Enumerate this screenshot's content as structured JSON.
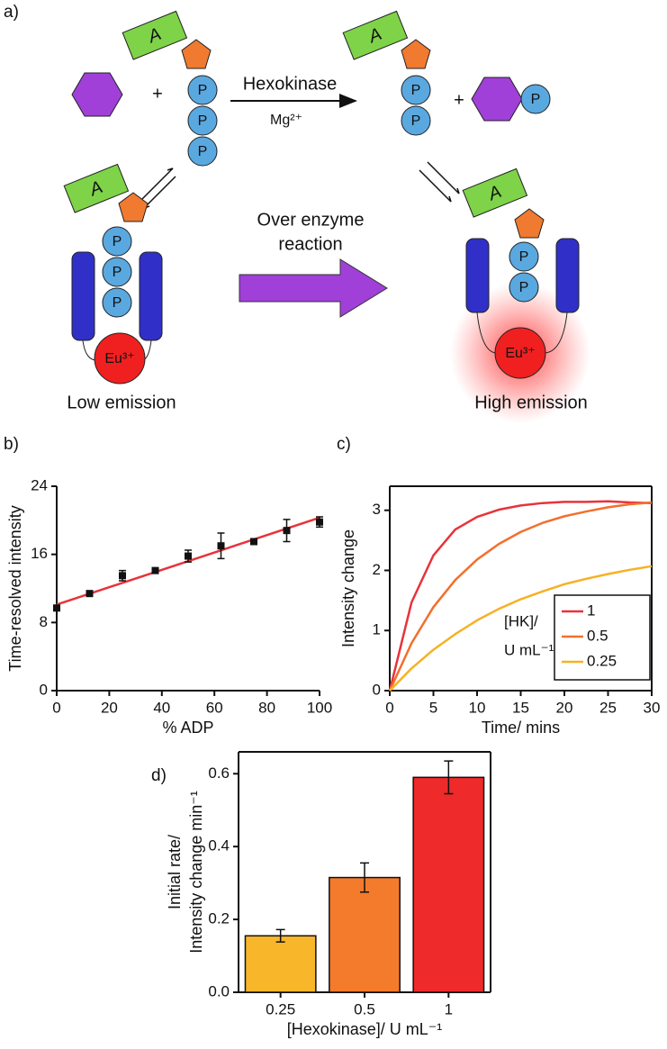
{
  "diagram": {
    "panel": "a)",
    "enzyme": "Hexokinase",
    "cofactor": "Mg²⁺",
    "plus": "+",
    "adenine": "A",
    "phosphate": "P",
    "europium": "Eu³⁺",
    "arrow_label": [
      "Over enzyme",
      "reaction"
    ],
    "left_caption": "Low emission",
    "right_caption": "High emission"
  },
  "chart_data": [
    {
      "type": "scatter",
      "panel": "b)",
      "xlabel": "% ADP",
      "ylabel": "Time-resolved intensity",
      "x": [
        0,
        12.5,
        25,
        37.5,
        50,
        62.5,
        75,
        87.5,
        100
      ],
      "values": [
        9.7,
        11.4,
        13.5,
        14.1,
        15.8,
        17.0,
        17.5,
        18.8,
        19.8
      ],
      "errors": [
        0.3,
        0.3,
        0.6,
        0.3,
        0.7,
        1.5,
        0.3,
        1.3,
        0.6
      ],
      "color": "#111111",
      "fit": {
        "x": [
          0,
          100
        ],
        "values": [
          10.1,
          20.3
        ],
        "color": "#e8333a"
      },
      "xlim": [
        0,
        100
      ],
      "xticks": [
        0,
        20,
        40,
        60,
        80,
        100
      ],
      "ylim": [
        0,
        24
      ],
      "yticks": [
        0,
        8,
        16,
        24
      ]
    },
    {
      "type": "line",
      "panel": "c)",
      "xlabel": "Time/ mins",
      "ylabel": "Intensity change",
      "x": [
        0,
        2.5,
        5,
        7.5,
        10,
        12.5,
        15,
        17.5,
        20,
        22.5,
        25,
        27.5,
        30
      ],
      "series": [
        {
          "name": "1",
          "color": "#e8333a",
          "values": [
            0,
            1.47,
            2.25,
            2.68,
            2.89,
            3.01,
            3.08,
            3.12,
            3.14,
            3.14,
            3.15,
            3.13,
            3.12
          ]
        },
        {
          "name": "0.5",
          "color": "#f36f2c",
          "values": [
            0,
            0.79,
            1.39,
            1.84,
            2.18,
            2.44,
            2.64,
            2.79,
            2.9,
            2.98,
            3.05,
            3.1,
            3.13
          ]
        },
        {
          "name": "0.25",
          "color": "#f6b124",
          "values": [
            0,
            0.37,
            0.68,
            0.94,
            1.17,
            1.36,
            1.52,
            1.65,
            1.77,
            1.86,
            1.94,
            2.01,
            2.07
          ]
        }
      ],
      "legend_title": [
        "[HK]/",
        "U mL⁻¹"
      ],
      "legend": "lower right",
      "xlim": [
        0,
        30
      ],
      "xticks": [
        0,
        5,
        10,
        15,
        20,
        25,
        30
      ],
      "ylim": [
        0,
        3.4
      ],
      "yticks": [
        0,
        1,
        2,
        3
      ]
    },
    {
      "type": "bar",
      "panel": "d)",
      "xlabel": "[Hexokinase]/ U mL⁻¹",
      "ylabel": [
        "Initial rate/",
        "Intensity change min⁻¹"
      ],
      "categories": [
        "0.25",
        "0.5",
        "1"
      ],
      "values": [
        0.155,
        0.315,
        0.59
      ],
      "errors": [
        0.017,
        0.04,
        0.045
      ],
      "colors": [
        "#f8b62a",
        "#f47a2c",
        "#ee2a2a"
      ],
      "ylim": [
        0,
        0.66
      ],
      "yticks": [
        {
          "value": 0,
          "label": "0.0"
        },
        0.2,
        0.4,
        0.6
      ]
    }
  ]
}
